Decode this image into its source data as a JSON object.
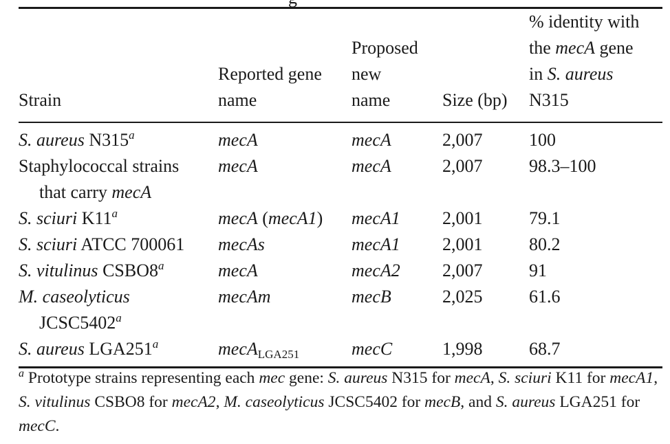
{
  "partial_title": "g",
  "columns": [
    {
      "lines": [
        "Strain"
      ]
    },
    {
      "lines": [
        "Reported gene",
        "name"
      ]
    },
    {
      "lines": [
        "Proposed",
        "new",
        "name"
      ]
    },
    {
      "lines": [
        "Size (bp)"
      ]
    },
    {
      "lines_parts": [
        [
          {
            "t": "% identity with"
          }
        ],
        [
          {
            "t": "the "
          },
          {
            "t": "mecA",
            "i": true
          },
          {
            "t": " gene"
          }
        ],
        [
          {
            "t": "in "
          },
          {
            "t": "S. aureus",
            "i": true
          }
        ],
        [
          {
            "t": "N315"
          }
        ]
      ]
    }
  ],
  "rows": [
    {
      "strain": [
        [
          {
            "t": "S. aureus",
            "i": true
          },
          {
            "t": " N315"
          },
          {
            "t": "a",
            "sup": true,
            "i": true
          }
        ]
      ],
      "reported": [
        {
          "t": "mecA",
          "i": true
        }
      ],
      "proposed": [
        {
          "t": "mecA",
          "i": true
        }
      ],
      "size": "2,007",
      "identity": "100"
    },
    {
      "strain": [
        [
          {
            "t": "Staphylococcal strains"
          }
        ],
        [
          {
            "t": "that carry "
          },
          {
            "t": "mecA",
            "i": true
          }
        ]
      ],
      "reported": [
        {
          "t": "mecA",
          "i": true
        }
      ],
      "proposed": [
        {
          "t": "mecA",
          "i": true
        }
      ],
      "size": "2,007",
      "identity": "98.3–100"
    },
    {
      "strain": [
        [
          {
            "t": "S. sciuri",
            "i": true
          },
          {
            "t": " K11"
          },
          {
            "t": "a",
            "sup": true,
            "i": true
          }
        ]
      ],
      "reported": [
        {
          "t": "mecA",
          "i": true
        },
        {
          "t": " ("
        },
        {
          "t": "mecA1",
          "i": true
        },
        {
          "t": ")"
        }
      ],
      "proposed": [
        {
          "t": "mecA1",
          "i": true
        }
      ],
      "size": "2,001",
      "identity": "79.1"
    },
    {
      "strain": [
        [
          {
            "t": "S. sciuri",
            "i": true
          },
          {
            "t": " ATCC 700061"
          }
        ]
      ],
      "reported": [
        {
          "t": "mecAs",
          "i": true
        }
      ],
      "proposed": [
        {
          "t": "mecA1",
          "i": true
        }
      ],
      "size": "2,001",
      "identity": "80.2"
    },
    {
      "strain": [
        [
          {
            "t": "S. vitulinus",
            "i": true
          },
          {
            "t": " CSBO8"
          },
          {
            "t": "a",
            "sup": true,
            "i": true
          }
        ]
      ],
      "reported": [
        {
          "t": "mecA",
          "i": true
        }
      ],
      "proposed": [
        {
          "t": "mecA2",
          "i": true
        }
      ],
      "size": "2,007",
      "identity": "91"
    },
    {
      "strain": [
        [
          {
            "t": "M. caseolyticus",
            "i": true
          }
        ],
        [
          {
            "t": "JCSC5402"
          },
          {
            "t": "a",
            "sup": true,
            "i": true
          }
        ]
      ],
      "reported": [
        {
          "t": "mecAm",
          "i": true
        }
      ],
      "proposed": [
        {
          "t": "mecB",
          "i": true
        }
      ],
      "size": "2,025",
      "identity": "61.6"
    },
    {
      "strain": [
        [
          {
            "t": "S. aureus",
            "i": true
          },
          {
            "t": " LGA251"
          },
          {
            "t": "a",
            "sup": true,
            "i": true
          }
        ]
      ],
      "reported": [
        {
          "t": "mecA",
          "i": true
        },
        {
          "t": "LGA251",
          "sub": true
        }
      ],
      "proposed": [
        {
          "t": "mecC",
          "i": true
        }
      ],
      "size": "1,998",
      "identity": "68.7"
    }
  ],
  "footnote": [
    {
      "t": "a",
      "sup": true,
      "i": true
    },
    {
      "t": " Prototype strains representing each "
    },
    {
      "t": "mec",
      "i": true
    },
    {
      "t": " gene: "
    },
    {
      "t": "S. aureus",
      "i": true
    },
    {
      "t": " N315 for "
    },
    {
      "t": "mecA",
      "i": true
    },
    {
      "t": ", "
    },
    {
      "t": "S. sciuri",
      "i": true
    },
    {
      "t": " K11 for "
    },
    {
      "t": "mecA1",
      "i": true
    },
    {
      "t": ", "
    },
    {
      "t": "S. vitulinus",
      "i": true
    },
    {
      "t": " CSBO8 for "
    },
    {
      "t": "mecA2",
      "i": true
    },
    {
      "t": ", "
    },
    {
      "t": "M. caseolyticus",
      "i": true
    },
    {
      "t": " JCSC5402 for "
    },
    {
      "t": "mecB",
      "i": true
    },
    {
      "t": ", and "
    },
    {
      "t": "S. aureus",
      "i": true
    },
    {
      "t": " LGA251 for "
    },
    {
      "t": "mecC",
      "i": true
    },
    {
      "t": "."
    }
  ]
}
